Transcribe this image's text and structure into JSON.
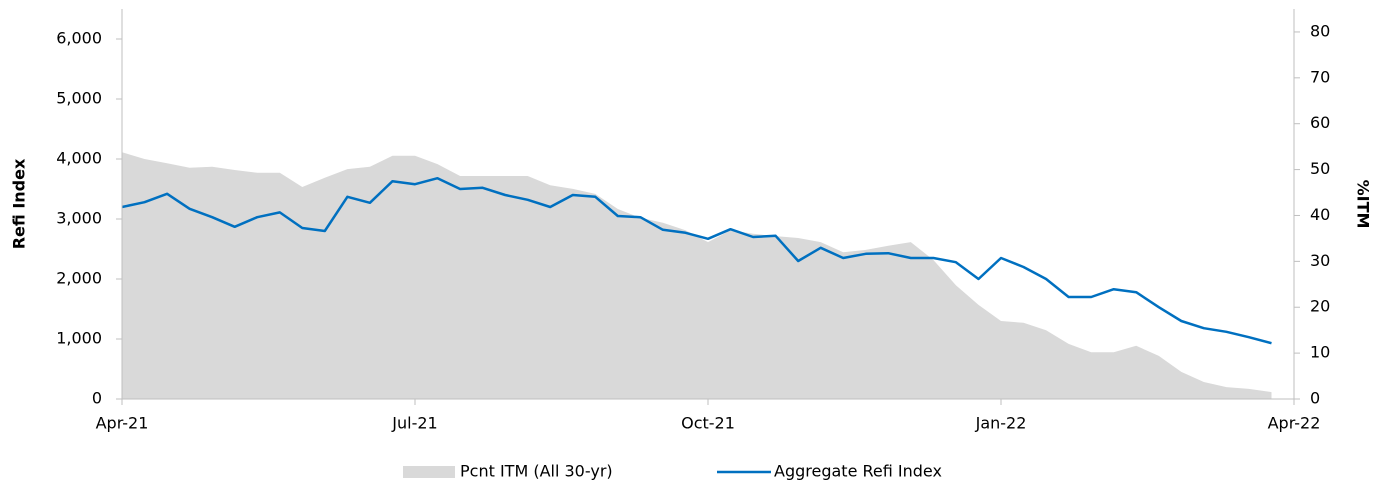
{
  "chart_data": {
    "type": "line",
    "y_label": "Refi Index",
    "y2_label": "%ITM",
    "x": [
      0,
      1,
      2,
      3,
      4,
      5,
      6,
      7,
      8,
      9,
      10,
      11,
      12,
      13,
      14,
      15,
      16,
      17,
      18,
      19,
      20,
      21,
      22,
      23,
      24,
      25,
      26,
      27,
      28,
      29,
      30,
      31,
      32,
      33,
      34,
      35,
      36,
      37,
      38,
      39,
      40,
      41,
      42,
      43,
      44,
      45,
      46,
      47,
      48,
      49,
      50,
      51
    ],
    "xlim": [
      0,
      52
    ],
    "xticks": [
      {
        "value": 0,
        "label": "Apr-21"
      },
      {
        "value": 13,
        "label": "Jul-21"
      },
      {
        "value": 26,
        "label": "Oct-21"
      },
      {
        "value": 39,
        "label": "Jan-22"
      },
      {
        "value": 52,
        "label": "Apr-22"
      }
    ],
    "ylim": [
      0,
      6500
    ],
    "yticks": [
      0,
      {
        "value": 1000,
        "label": "1,000"
      },
      {
        "value": 2000,
        "label": "2,000"
      },
      {
        "value": 3000,
        "label": "3,000"
      },
      {
        "value": 4000,
        "label": "4,000"
      },
      {
        "value": 5000,
        "label": "5,000"
      },
      {
        "value": 6000,
        "label": "6,000"
      }
    ],
    "y2lim": [
      0,
      85
    ],
    "y2ticks": [
      0,
      10,
      20,
      30,
      40,
      50,
      60,
      70,
      80
    ],
    "legend": "bottom",
    "series": [
      {
        "name": "Pcnt ITM (All 30-yr)",
        "type": "area",
        "axis": "y2",
        "color": "#d9d9d9",
        "values": [
          53.8,
          52.3,
          51.4,
          50.4,
          50.6,
          49.9,
          49.3,
          49.3,
          46.2,
          48.2,
          50.1,
          50.6,
          53.0,
          53.0,
          51.2,
          48.6,
          48.6,
          48.6,
          48.6,
          46.6,
          45.8,
          44.7,
          41.4,
          39.5,
          38.4,
          36.8,
          34.2,
          36.8,
          36.0,
          35.5,
          35.1,
          34.2,
          32.0,
          32.5,
          33.4,
          34.2,
          30.3,
          24.8,
          20.5,
          17.0,
          16.6,
          15.0,
          12.0,
          10.2,
          10.2,
          11.6,
          9.4,
          5.9,
          3.7,
          2.6,
          2.2,
          1.5
        ]
      },
      {
        "name": "Aggregate Refi Index",
        "type": "line",
        "axis": "y",
        "color": "#0070c0",
        "values": [
          3200,
          3280,
          3420,
          3170,
          3030,
          2870,
          3030,
          3110,
          2850,
          2800,
          3370,
          3270,
          3630,
          3580,
          3680,
          3500,
          3520,
          3400,
          3320,
          3200,
          3400,
          3370,
          3050,
          3030,
          2820,
          2770,
          2670,
          2830,
          2700,
          2720,
          2300,
          2520,
          2350,
          2420,
          2430,
          2350,
          2350,
          2280,
          2000,
          2350,
          2200,
          2000,
          1700,
          1700,
          1830,
          1780,
          1530,
          1300,
          1180,
          1120,
          1030,
          930
        ]
      }
    ]
  }
}
